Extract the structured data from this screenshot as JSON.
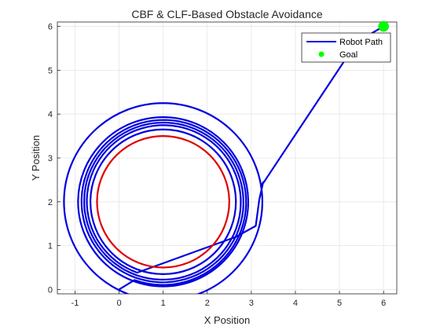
{
  "chart_data": {
    "type": "line",
    "title": "CBF & CLF-Based Obstacle Avoidance",
    "xlabel": "X Position",
    "ylabel": "Y Position",
    "xlim": [
      -1.4,
      6.3
    ],
    "ylim": [
      -0.1,
      6.1
    ],
    "xticks": [
      -1,
      0,
      1,
      2,
      3,
      4,
      5,
      6
    ],
    "yticks": [
      0,
      1,
      2,
      3,
      4,
      5,
      6
    ],
    "grid": true,
    "legend_position": "top-right",
    "legend": {
      "path_label": "Robot Path",
      "goal_label": "Goal"
    },
    "colors": {
      "path": "#0000e0",
      "obstacle": "#e00000",
      "goal": "#00ff00",
      "grid": "#e6e6e6",
      "axis": "#262626"
    },
    "obstacle": {
      "center": [
        1.0,
        2.0
      ],
      "radius": 1.5
    },
    "goal": {
      "x": 6.0,
      "y": 6.0
    },
    "robot_path": {
      "start": [
        0.0,
        0.0
      ],
      "spiral_center": [
        1.0,
        2.0
      ],
      "spiral_start_angle_deg": 250,
      "spiral_angle_sweep_deg": 1080,
      "spiral_radius_start": 1.9,
      "spiral_radius_end": 1.72,
      "rings": [
        {
          "radius": 2.25
        },
        {
          "radius": 1.93
        },
        {
          "radius": 1.65
        }
      ],
      "exit": [
        [
          2.65,
          1.2
        ],
        [
          3.1,
          1.45
        ],
        [
          3.18,
          2.05
        ],
        [
          3.27,
          2.45
        ],
        [
          3.22,
          2.35
        ],
        [
          5.4,
          5.65
        ],
        [
          6.0,
          6.0
        ]
      ]
    }
  }
}
